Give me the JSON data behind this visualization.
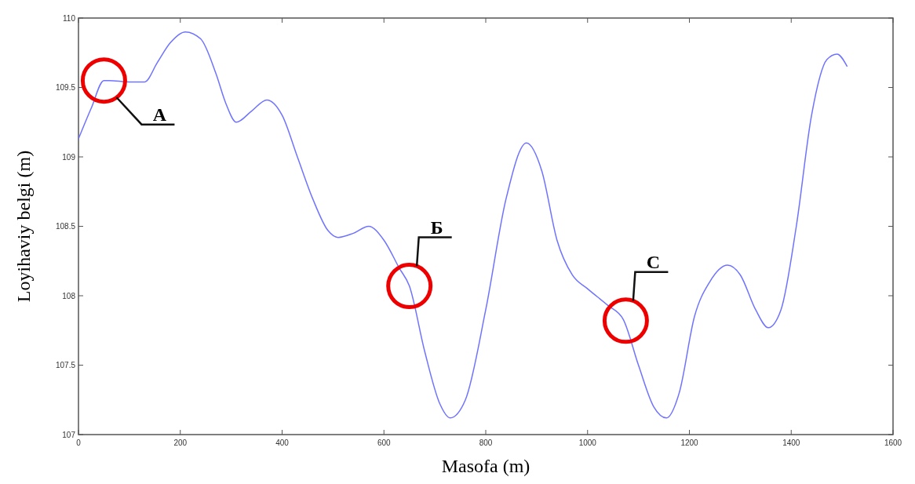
{
  "chart_data": {
    "type": "line",
    "xlabel": "Masofa (m)",
    "ylabel": "Loyihaviy belgi (m)",
    "x": [
      0,
      25,
      50,
      60,
      100,
      130,
      155,
      180,
      210,
      240,
      270,
      290,
      310,
      340,
      370,
      400,
      430,
      460,
      490,
      510,
      540,
      570,
      600,
      630,
      650,
      680,
      710,
      730,
      760,
      800,
      840,
      880,
      910,
      940,
      970,
      1000,
      1040,
      1070,
      1100,
      1130,
      1155,
      1180,
      1210,
      1240,
      1275,
      1300,
      1330,
      1355,
      1380,
      1410,
      1440,
      1470,
      1490,
      1510
    ],
    "series": [
      {
        "color": "#6f73ff",
        "values": [
          109.13,
          109.35,
          109.55,
          109.55,
          109.54,
          109.54,
          109.68,
          109.82,
          109.9,
          109.85,
          109.6,
          109.38,
          109.25,
          109.33,
          109.41,
          109.3,
          109.0,
          108.7,
          108.47,
          108.42,
          108.45,
          108.5,
          108.4,
          108.2,
          108.07,
          107.6,
          107.22,
          107.12,
          107.25,
          107.9,
          108.7,
          109.1,
          108.9,
          108.4,
          108.15,
          108.05,
          107.93,
          107.83,
          107.5,
          107.2,
          107.12,
          107.3,
          107.85,
          108.1,
          108.22,
          108.15,
          107.9,
          107.77,
          107.9,
          108.5,
          109.3,
          109.7,
          109.74,
          109.65
        ]
      }
    ],
    "xlim": [
      0,
      1600
    ],
    "xticks": [
      0,
      200,
      400,
      600,
      800,
      1000,
      1200,
      1400,
      1600
    ],
    "ylim": [
      107,
      110
    ],
    "yticks": [
      107,
      107.5,
      108,
      108.5,
      109,
      109.5,
      110
    ],
    "annotations": [
      {
        "text": "A",
        "x": 50,
        "y": 109.55
      },
      {
        "text": "Б",
        "x": 650,
        "y": 108.07
      },
      {
        "text": "C",
        "x": 1075,
        "y": 107.82
      }
    ],
    "grid": false,
    "marker": "none",
    "line_style": "solid"
  }
}
